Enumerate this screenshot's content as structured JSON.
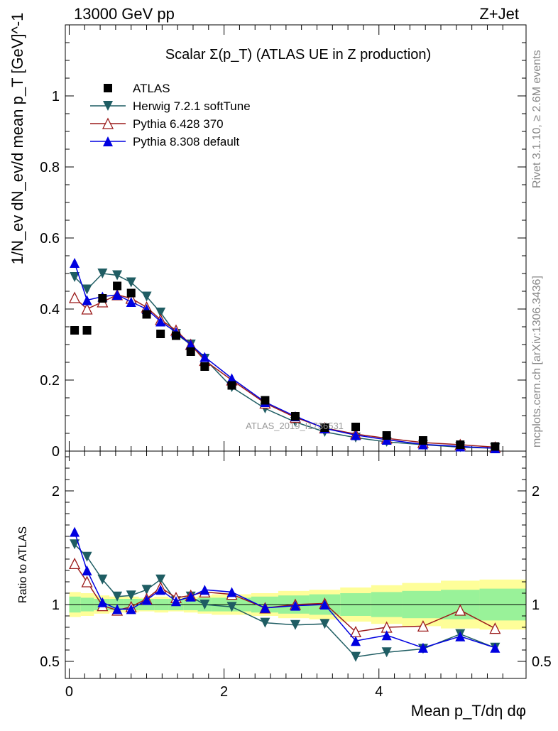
{
  "header": {
    "left": "13000 GeV pp",
    "right": "Z+Jet"
  },
  "side_labels": {
    "rivet": "Rivet 3.1.10, ≥ 2.6M events",
    "mcplots": "mcplots.cern.ch [arXiv:1306.3436]"
  },
  "watermark": "ATLAS_2019_I1736531",
  "chart_data": {
    "type": "line",
    "title": "Scalar Σ(p_T) (ATLAS UE in Z production)",
    "ylabel": "1/N_ev dN_ev/d mean p_T [GeV]^-1",
    "ratio_ylabel": "Ratio to ATLAS",
    "xlabel": "Mean p_T/dη dφ",
    "xlim": [
      -0.05,
      5.9
    ],
    "ylim": [
      0,
      1.2
    ],
    "ratio_ylim": [
      0.35,
      2.35
    ],
    "x_ticks": [
      0,
      2,
      4
    ],
    "y_ticks": [
      0,
      0.2,
      0.4,
      0.6,
      0.8,
      1
    ],
    "ratio_ticks": [
      0.5,
      1,
      2
    ],
    "x": [
      0.07,
      0.23,
      0.43,
      0.62,
      0.8,
      1.0,
      1.18,
      1.38,
      1.57,
      1.75,
      2.1,
      2.53,
      2.92,
      3.3,
      3.7,
      4.1,
      4.57,
      5.05,
      5.5
    ],
    "legend": [
      {
        "label": "ATLAS",
        "color": "#000000",
        "marker": "square"
      },
      {
        "label": "Herwig 7.2.1 softTune",
        "color": "#1f5d63",
        "marker": "tri-down"
      },
      {
        "label": "Pythia 6.428 370",
        "color": "#9b1b1b",
        "marker": "tri-open"
      },
      {
        "label": "Pythia 8.308 default",
        "color": "#0000e0",
        "marker": "tri-up"
      }
    ],
    "data": [
      0.34,
      0.34,
      0.43,
      0.465,
      0.445,
      0.385,
      0.33,
      0.325,
      0.28,
      0.238,
      0.185,
      0.143,
      0.098,
      0.066,
      0.068,
      0.044,
      0.03,
      0.018,
      0.013
    ],
    "series": [
      {
        "name": "Herwig 7.2.1 softTune",
        "values": [
          0.49,
          0.455,
          0.5,
          0.495,
          0.475,
          0.435,
          0.39,
          0.33,
          0.3,
          0.26,
          0.18,
          0.12,
          0.082,
          0.054,
          0.038,
          0.026,
          0.018,
          0.011,
          0.008
        ],
        "ratio": [
          1.53,
          1.42,
          1.22,
          1.07,
          1.08,
          1.13,
          1.22,
          1.03,
          1.07,
          1.0,
          0.98,
          0.84,
          0.82,
          0.83,
          0.54,
          0.58,
          0.61,
          0.74,
          0.62
        ]
      },
      {
        "name": "Pythia 6.428 370",
        "values": [
          0.432,
          0.4,
          0.42,
          0.44,
          0.43,
          0.405,
          0.37,
          0.34,
          0.3,
          0.255,
          0.2,
          0.135,
          0.095,
          0.065,
          0.048,
          0.036,
          0.024,
          0.018,
          0.011
        ],
        "ratio": [
          1.36,
          1.2,
          0.99,
          0.95,
          0.98,
          1.05,
          1.15,
          1.06,
          1.08,
          1.11,
          1.09,
          0.97,
          1.0,
          1.01,
          0.76,
          0.8,
          0.81,
          0.95,
          0.79
        ]
      },
      {
        "name": "Pythia 8.308 default",
        "values": [
          0.53,
          0.425,
          0.435,
          0.44,
          0.42,
          0.4,
          0.365,
          0.335,
          0.3,
          0.265,
          0.205,
          0.138,
          0.098,
          0.064,
          0.045,
          0.032,
          0.019,
          0.013,
          0.008
        ],
        "ratio": [
          1.64,
          1.3,
          1.02,
          0.96,
          0.96,
          1.04,
          1.13,
          1.03,
          1.07,
          1.13,
          1.11,
          0.97,
          0.99,
          1.0,
          0.68,
          0.73,
          0.62,
          0.72,
          0.62
        ]
      }
    ],
    "ratio_bands": {
      "edges": [
        0,
        0.15,
        0.32,
        0.52,
        0.71,
        0.9,
        1.1,
        1.28,
        1.48,
        1.66,
        1.84,
        2.35,
        2.7,
        3.1,
        3.5,
        3.9,
        4.3,
        4.8,
        5.3,
        5.9
      ],
      "inner": [
        0.07,
        0.06,
        0.05,
        0.05,
        0.05,
        0.05,
        0.05,
        0.05,
        0.05,
        0.06,
        0.06,
        0.07,
        0.08,
        0.09,
        0.1,
        0.11,
        0.12,
        0.13,
        0.14
      ],
      "outer": [
        0.11,
        0.1,
        0.08,
        0.07,
        0.07,
        0.06,
        0.07,
        0.06,
        0.07,
        0.08,
        0.09,
        0.1,
        0.12,
        0.13,
        0.15,
        0.17,
        0.19,
        0.21,
        0.22
      ],
      "inner_color": "#99f299",
      "outer_color": "#fefe99"
    }
  }
}
